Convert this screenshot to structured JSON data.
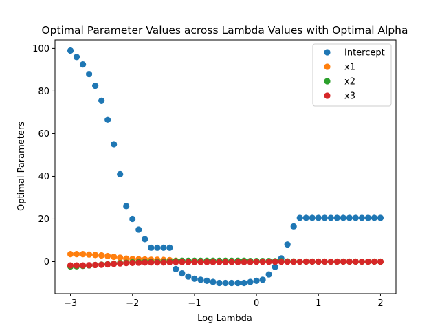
{
  "chart_data": {
    "type": "scatter",
    "title": "Optimal Parameter Values across Lambda Values with Optimal Alpha",
    "xlabel": "Log Lambda",
    "ylabel": "Optimal Parameters",
    "xlim": [
      -3.25,
      2.25
    ],
    "ylim": [
      -15,
      104
    ],
    "xticks": [
      -3,
      -2,
      -1,
      0,
      1,
      2
    ],
    "yticks": [
      0,
      20,
      40,
      60,
      80,
      100
    ],
    "grid": false,
    "legend_position": "top-right",
    "x": [
      -3.0,
      -2.9,
      -2.8,
      -2.7,
      -2.6,
      -2.5,
      -2.4,
      -2.3,
      -2.2,
      -2.1,
      -2.0,
      -1.9,
      -1.8,
      -1.7,
      -1.6,
      -1.5,
      -1.4,
      -1.3,
      -1.2,
      -1.1,
      -1.0,
      -0.9,
      -0.8,
      -0.7,
      -0.6,
      -0.5,
      -0.4,
      -0.3,
      -0.2,
      -0.1,
      0.0,
      0.1,
      0.2,
      0.3,
      0.4,
      0.5,
      0.6,
      0.7,
      0.8,
      0.9,
      1.0,
      1.1,
      1.2,
      1.3,
      1.4,
      1.5,
      1.6,
      1.7,
      1.8,
      1.9,
      2.0
    ],
    "series": [
      {
        "name": "Intercept",
        "color": "#1f77b4",
        "values": [
          99.0,
          96.0,
          92.5,
          88.0,
          82.5,
          75.5,
          66.5,
          55.0,
          41.0,
          26.0,
          20.0,
          15.0,
          10.5,
          6.5,
          6.5,
          6.5,
          6.5,
          -3.5,
          -5.5,
          -7.0,
          -8.0,
          -8.5,
          -9.0,
          -9.5,
          -10.0,
          -10.0,
          -10.0,
          -10.0,
          -10.0,
          -9.5,
          -9.0,
          -8.5,
          -6.0,
          -2.5,
          1.5,
          8.0,
          16.5,
          20.5,
          20.5,
          20.5,
          20.5,
          20.5,
          20.5,
          20.5,
          20.5,
          20.5,
          20.5,
          20.5,
          20.5,
          20.5,
          20.5
        ]
      },
      {
        "name": "x1",
        "color": "#ff7f0e",
        "values": [
          3.5,
          3.5,
          3.5,
          3.3,
          3.1,
          2.9,
          2.6,
          2.2,
          1.8,
          1.4,
          1.2,
          1.1,
          1.0,
          0.9,
          0.9,
          0.8,
          0.7,
          0.4,
          0.3,
          0.2,
          0.2,
          0.1,
          0.1,
          0.1,
          0.1,
          0.1,
          0.1,
          0.1,
          0.1,
          0.1,
          0.1,
          0.1,
          0.1,
          0.1,
          0.1,
          0.1,
          0.1,
          0.0,
          0.0,
          0.0,
          0.0,
          0.0,
          0.0,
          0.0,
          0.0,
          0.0,
          0.0,
          0.0,
          0.0,
          0.0,
          0.0
        ]
      },
      {
        "name": "x2",
        "color": "#2ca02c",
        "values": [
          -2.3,
          -2.2,
          -2.0,
          -1.8,
          -1.6,
          -1.4,
          -1.2,
          -1.0,
          -0.7,
          -0.5,
          -0.3,
          -0.2,
          -0.1,
          -0.1,
          0.0,
          0.0,
          0.1,
          0.3,
          0.4,
          0.4,
          0.4,
          0.4,
          0.4,
          0.4,
          0.4,
          0.4,
          0.4,
          0.4,
          0.4,
          0.3,
          0.3,
          0.3,
          0.3,
          0.2,
          0.2,
          0.1,
          0.1,
          0.0,
          0.0,
          0.0,
          0.0,
          0.0,
          0.0,
          0.0,
          0.0,
          0.0,
          0.0,
          0.0,
          0.0,
          0.0,
          0.0
        ]
      },
      {
        "name": "x3",
        "color": "#d62728",
        "values": [
          -1.8,
          -1.8,
          -1.8,
          -1.7,
          -1.6,
          -1.5,
          -1.3,
          -1.1,
          -0.9,
          -0.7,
          -0.6,
          -0.5,
          -0.4,
          -0.4,
          -0.4,
          -0.4,
          -0.3,
          -0.2,
          -0.2,
          -0.2,
          -0.2,
          -0.2,
          -0.2,
          -0.2,
          -0.2,
          -0.2,
          -0.2,
          -0.2,
          -0.2,
          -0.2,
          -0.1,
          -0.1,
          -0.1,
          -0.1,
          -0.1,
          -0.1,
          -0.1,
          0.0,
          0.0,
          0.0,
          0.0,
          0.0,
          0.0,
          0.0,
          0.0,
          0.0,
          0.0,
          0.0,
          0.0,
          0.0,
          0.0
        ]
      }
    ]
  }
}
